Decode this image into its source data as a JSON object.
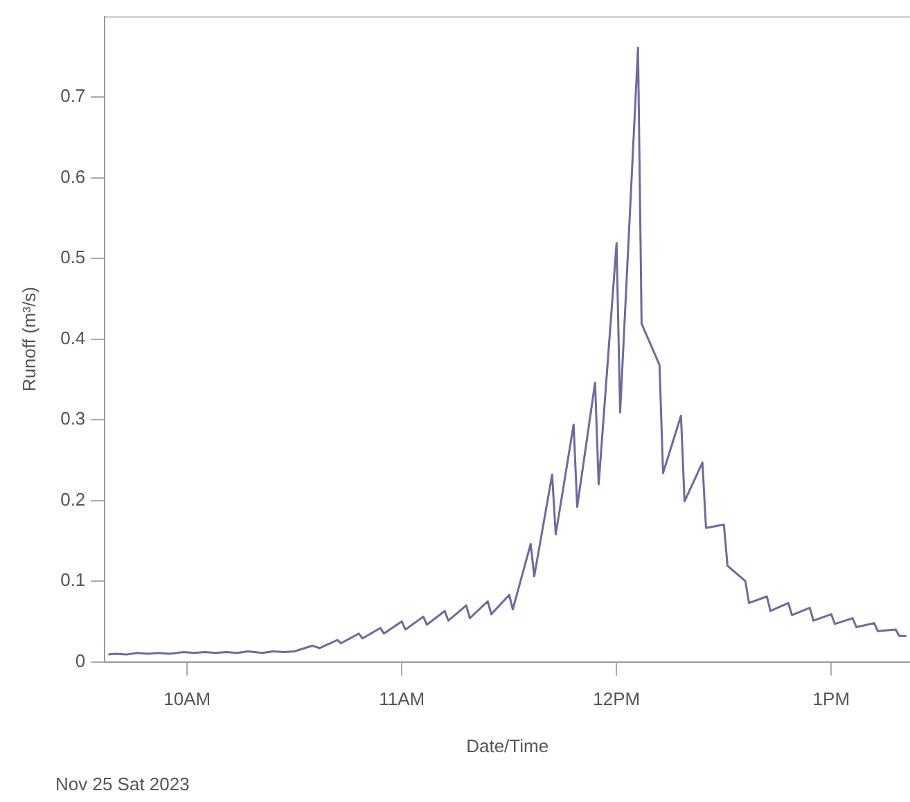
{
  "chart_data": {
    "type": "line",
    "xlabel": "Date/Time",
    "ylabel": "Runoff (m³/s)",
    "annotations": [
      "Nov 25 Sat 2023"
    ],
    "xlim": [
      "2023-11-25T09:37",
      "2023-11-25T13:22"
    ],
    "xticks": [
      {
        "value": "2023-11-25T10:00",
        "label": "10AM"
      },
      {
        "value": "2023-11-25T11:00",
        "label": "11AM"
      },
      {
        "value": "2023-11-25T12:00",
        "label": "12PM"
      },
      {
        "value": "2023-11-25T13:00",
        "label": "1PM"
      }
    ],
    "ylim": [
      0,
      0.8
    ],
    "yticks": [
      0,
      0.1,
      0.2,
      0.3,
      0.4,
      0.5,
      0.6,
      0.7
    ],
    "grid": false,
    "legend": false,
    "marker": "none",
    "line_style": "solid",
    "series": [
      {
        "color": "#6b6b9e",
        "x": [
          "2023-11-25T09:38",
          "2023-11-25T09:40",
          "2023-11-25T09:43",
          "2023-11-25T09:46",
          "2023-11-25T09:49",
          "2023-11-25T09:52",
          "2023-11-25T09:55",
          "2023-11-25T09:59",
          "2023-11-25T10:02",
          "2023-11-25T10:05",
          "2023-11-25T10:08",
          "2023-11-25T10:11",
          "2023-11-25T10:14",
          "2023-11-25T10:17",
          "2023-11-25T10:21",
          "2023-11-25T10:24",
          "2023-11-25T10:27",
          "2023-11-25T10:30",
          "2023-11-25T10:35",
          "2023-11-25T10:37",
          "2023-11-25T10:42",
          "2023-11-25T10:43",
          "2023-11-25T10:48",
          "2023-11-25T10:49",
          "2023-11-25T10:54",
          "2023-11-25T10:55",
          "2023-11-25T11:00",
          "2023-11-25T11:01",
          "2023-11-25T11:06",
          "2023-11-25T11:07",
          "2023-11-25T11:12",
          "2023-11-25T11:13",
          "2023-11-25T11:18",
          "2023-11-25T11:19",
          "2023-11-25T11:24",
          "2023-11-25T11:25",
          "2023-11-25T11:30",
          "2023-11-25T11:31",
          "2023-11-25T11:36",
          "2023-11-25T11:37",
          "2023-11-25T11:42",
          "2023-11-25T11:43",
          "2023-11-25T11:48",
          "2023-11-25T11:49",
          "2023-11-25T11:54",
          "2023-11-25T11:55",
          "2023-11-25T12:00",
          "2023-11-25T12:01",
          "2023-11-25T12:06",
          "2023-11-25T12:07",
          "2023-11-25T12:12",
          "2023-11-25T12:13",
          "2023-11-25T12:18",
          "2023-11-25T12:19",
          "2023-11-25T12:24",
          "2023-11-25T12:25",
          "2023-11-25T12:30",
          "2023-11-25T12:31",
          "2023-11-25T12:36",
          "2023-11-25T12:37",
          "2023-11-25T12:42",
          "2023-11-25T12:43",
          "2023-11-25T12:48",
          "2023-11-25T12:49",
          "2023-11-25T12:54",
          "2023-11-25T12:55",
          "2023-11-25T13:00",
          "2023-11-25T13:01",
          "2023-11-25T13:06",
          "2023-11-25T13:07",
          "2023-11-25T13:12",
          "2023-11-25T13:13",
          "2023-11-25T13:18",
          "2023-11-25T13:19",
          "2023-11-25T13:21"
        ],
        "values": [
          0.009,
          0.01,
          0.009,
          0.011,
          0.01,
          0.011,
          0.01,
          0.012,
          0.011,
          0.012,
          0.011,
          0.012,
          0.011,
          0.013,
          0.011,
          0.013,
          0.012,
          0.013,
          0.02,
          0.017,
          0.027,
          0.023,
          0.035,
          0.029,
          0.042,
          0.035,
          0.05,
          0.04,
          0.056,
          0.046,
          0.063,
          0.051,
          0.07,
          0.054,
          0.075,
          0.059,
          0.083,
          0.065,
          0.146,
          0.106,
          0.232,
          0.158,
          0.294,
          0.192,
          0.346,
          0.22,
          0.519,
          0.309,
          0.761,
          0.419,
          0.368,
          0.234,
          0.305,
          0.199,
          0.247,
          0.166,
          0.17,
          0.119,
          0.1,
          0.073,
          0.081,
          0.063,
          0.073,
          0.058,
          0.067,
          0.051,
          0.059,
          0.047,
          0.054,
          0.043,
          0.048,
          0.038,
          0.04,
          0.032,
          0.032
        ]
      }
    ]
  }
}
